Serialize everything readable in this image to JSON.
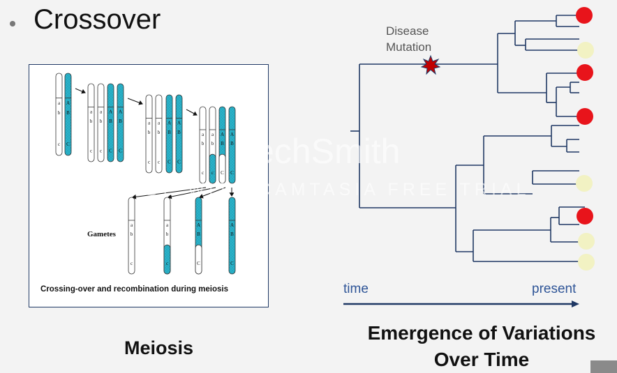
{
  "slide": {
    "title": "Crossover",
    "meiosis_caption": "Meiosis",
    "emergence_title_line1": "Emergence of Variations",
    "emergence_title_line2": "Over Time"
  },
  "meiosis_figure": {
    "gametes_label": "Gametes",
    "caption": "Crossing-over and recombination  during meiosis",
    "allele_labels": [
      "a",
      "b",
      "c",
      "A",
      "B",
      "C"
    ]
  },
  "tree": {
    "disease_label_line1": "Disease",
    "disease_label_line2": "Mutation",
    "axis_start": "time",
    "axis_end": "present",
    "leaf_states": [
      "mutated",
      "normal",
      "mutated",
      "none",
      "mutated",
      "none",
      "none",
      "none",
      "normal",
      "none",
      "mutated",
      "normal",
      "normal"
    ]
  },
  "watermark": {
    "line1": "TechSmith",
    "line2": "MADE WITH CAMTASIA FREE TRIAL"
  },
  "colors": {
    "chromosome_teal": "#2ab2c9",
    "tree_line": "#1f3864",
    "mutated_leaf": "#e8141b",
    "normal_leaf": "#f2f2c3",
    "axis_arrow": "#1f3864",
    "axis_text": "#2f5597"
  }
}
